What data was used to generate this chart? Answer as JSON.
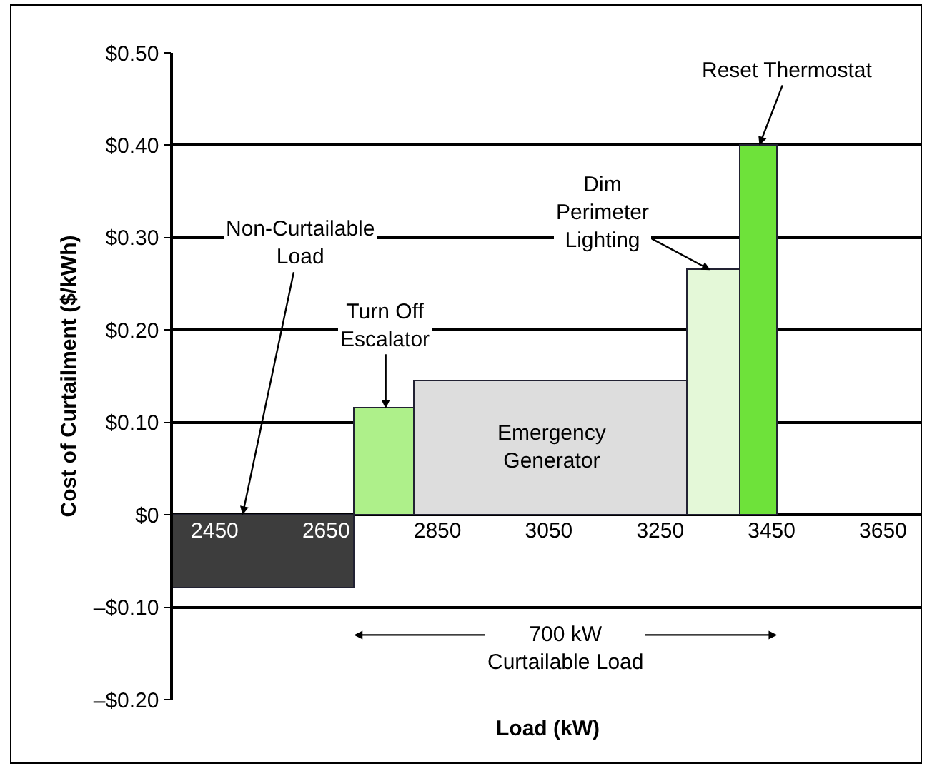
{
  "chart_data": {
    "type": "histogram",
    "xlabel": "Load (kW)",
    "ylabel": "Cost of Curtailment ($/kWh)",
    "bins": [
      2375,
      2700,
      2810,
      3300,
      3395,
      3460
    ],
    "values": [
      -0.08,
      0.115,
      0.145,
      0.265,
      0.4
    ],
    "colors": [
      "#3d3d3d",
      "#aef08a",
      "#dddddd",
      "#e4f8d8",
      "#6ee23a"
    ],
    "xlim": [
      2375,
      3720
    ],
    "xticks": [
      2450,
      2650,
      2850,
      3050,
      3250,
      3450,
      3650
    ],
    "ylim": [
      -0.2,
      0.5
    ],
    "yticks": [
      {
        "value": -0.2,
        "label": "–$0.20"
      },
      {
        "value": -0.1,
        "label": "–$0.10"
      },
      {
        "value": 0,
        "label": "$0"
      },
      {
        "value": 0.1,
        "label": "$0.10"
      },
      {
        "value": 0.2,
        "label": "$0.20"
      },
      {
        "value": 0.3,
        "label": "$0.30"
      },
      {
        "value": 0.4,
        "label": "$0.40"
      },
      {
        "value": 0.5,
        "label": "$0.50"
      }
    ],
    "grid": "y",
    "annotations": [
      {
        "text": "Non-Curtailable\nLoad",
        "x": 2500,
        "y": 0
      },
      {
        "text": "Turn Off\nEscalator",
        "x": 2757,
        "y": 0.115
      },
      "Emergency\nGenerator",
      {
        "text": "Dim\nPerimeter\nLighting",
        "x": 3340,
        "y": 0.265
      },
      {
        "text": "Reset Thermostat",
        "x": 3428,
        "y": 0.4
      },
      "700 kW\nCurtailable Load"
    ]
  }
}
